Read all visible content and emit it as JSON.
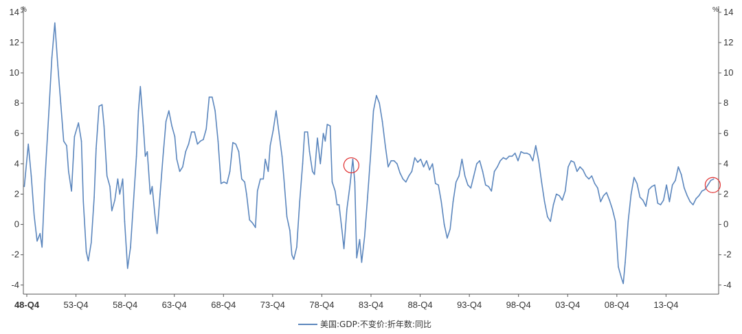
{
  "chart_data": {
    "type": "line",
    "unit_left": "%",
    "unit_right": "%",
    "y_ticks": [
      -4,
      -2,
      0,
      2,
      4,
      6,
      8,
      10,
      12,
      14
    ],
    "ylim": [
      -4.6,
      14.4
    ],
    "x_tick_labels": [
      "48-Q4",
      "53-Q4",
      "58-Q4",
      "63-Q4",
      "68-Q4",
      "73-Q4",
      "78-Q4",
      "83-Q4",
      "88-Q4",
      "93-Q4",
      "98-Q4",
      "03-Q4",
      "08-Q4",
      "13-Q4"
    ],
    "x_tick_values": [
      1948.75,
      1953.75,
      1958.75,
      1963.75,
      1968.75,
      1973.75,
      1978.75,
      1983.75,
      1988.75,
      1993.75,
      1998.75,
      2003.75,
      2008.75,
      2013.75
    ],
    "xlim": [
      1948.4,
      2019.1
    ],
    "grid": false,
    "legend_position": "bottom-center",
    "series": [
      {
        "name": "美国:GDP:不变价:折年数:同比",
        "color": "#5b86bd",
        "points": [
          [
            1948.5,
            2.5
          ],
          [
            1948.9,
            5.3
          ],
          [
            1949.2,
            3.2
          ],
          [
            1949.5,
            0.6
          ],
          [
            1949.8,
            -1.1
          ],
          [
            1950.1,
            -0.6
          ],
          [
            1950.3,
            -1.5
          ],
          [
            1950.6,
            3.0
          ],
          [
            1951.0,
            7.5
          ],
          [
            1951.3,
            11.0
          ],
          [
            1951.6,
            13.3
          ],
          [
            1951.9,
            10.5
          ],
          [
            1952.2,
            8.0
          ],
          [
            1952.5,
            5.5
          ],
          [
            1952.8,
            5.2
          ],
          [
            1953.0,
            3.5
          ],
          [
            1953.3,
            2.2
          ],
          [
            1953.6,
            5.8
          ],
          [
            1954.0,
            6.7
          ],
          [
            1954.3,
            5.5
          ],
          [
            1954.5,
            1.5
          ],
          [
            1954.8,
            -1.8
          ],
          [
            1955.0,
            -2.4
          ],
          [
            1955.3,
            -1.2
          ],
          [
            1955.6,
            1.8
          ],
          [
            1955.8,
            5.0
          ],
          [
            1956.1,
            7.8
          ],
          [
            1956.4,
            7.9
          ],
          [
            1956.6,
            6.5
          ],
          [
            1956.9,
            3.2
          ],
          [
            1957.2,
            2.5
          ],
          [
            1957.4,
            0.9
          ],
          [
            1957.7,
            1.6
          ],
          [
            1958.0,
            3.0
          ],
          [
            1958.2,
            2.0
          ],
          [
            1958.5,
            3.0
          ],
          [
            1958.7,
            0.2
          ],
          [
            1959.0,
            -2.9
          ],
          [
            1959.3,
            -1.5
          ],
          [
            1959.6,
            1.5
          ],
          [
            1959.9,
            4.5
          ],
          [
            1960.1,
            7.5
          ],
          [
            1960.3,
            9.1
          ],
          [
            1960.6,
            6.5
          ],
          [
            1960.8,
            4.5
          ],
          [
            1961.0,
            4.8
          ],
          [
            1961.3,
            2.0
          ],
          [
            1961.5,
            2.5
          ],
          [
            1961.8,
            0.5
          ],
          [
            1962.0,
            -0.6
          ],
          [
            1962.3,
            2.0
          ],
          [
            1962.6,
            4.5
          ],
          [
            1962.9,
            6.8
          ],
          [
            1963.2,
            7.5
          ],
          [
            1963.5,
            6.5
          ],
          [
            1963.8,
            5.8
          ],
          [
            1964.0,
            4.3
          ],
          [
            1964.3,
            3.5
          ],
          [
            1964.6,
            3.8
          ],
          [
            1964.9,
            4.8
          ],
          [
            1965.2,
            5.3
          ],
          [
            1965.5,
            6.1
          ],
          [
            1965.8,
            6.1
          ],
          [
            1966.1,
            5.3
          ],
          [
            1966.4,
            5.5
          ],
          [
            1966.7,
            5.6
          ],
          [
            1967.0,
            6.3
          ],
          [
            1967.3,
            8.4
          ],
          [
            1967.6,
            8.4
          ],
          [
            1967.9,
            7.5
          ],
          [
            1968.2,
            5.5
          ],
          [
            1968.5,
            2.7
          ],
          [
            1968.8,
            2.8
          ],
          [
            1969.1,
            2.7
          ],
          [
            1969.4,
            3.5
          ],
          [
            1969.7,
            5.4
          ],
          [
            1970.0,
            5.3
          ],
          [
            1970.3,
            4.8
          ],
          [
            1970.6,
            3.0
          ],
          [
            1970.9,
            2.8
          ],
          [
            1971.1,
            2.0
          ],
          [
            1971.4,
            0.3
          ],
          [
            1971.7,
            0.1
          ],
          [
            1972.0,
            -0.2
          ],
          [
            1972.2,
            2.2
          ],
          [
            1972.5,
            3.0
          ],
          [
            1972.8,
            3.0
          ],
          [
            1973.0,
            4.3
          ],
          [
            1973.3,
            3.5
          ],
          [
            1973.5,
            5.2
          ],
          [
            1973.8,
            6.2
          ],
          [
            1974.1,
            7.5
          ],
          [
            1974.4,
            6.0
          ],
          [
            1974.7,
            4.5
          ],
          [
            1974.9,
            3.0
          ],
          [
            1975.2,
            0.5
          ],
          [
            1975.5,
            -0.4
          ],
          [
            1975.7,
            -2.0
          ],
          [
            1975.9,
            -2.3
          ],
          [
            1976.2,
            -1.5
          ],
          [
            1976.5,
            1.5
          ],
          [
            1976.8,
            4.0
          ],
          [
            1977.0,
            6.1
          ],
          [
            1977.3,
            6.1
          ],
          [
            1977.5,
            4.8
          ],
          [
            1977.8,
            3.5
          ],
          [
            1978.0,
            3.3
          ],
          [
            1978.3,
            5.7
          ],
          [
            1978.6,
            4.0
          ],
          [
            1978.9,
            6.0
          ],
          [
            1979.1,
            5.5
          ],
          [
            1979.3,
            6.6
          ],
          [
            1979.6,
            6.5
          ],
          [
            1979.8,
            2.8
          ],
          [
            1980.1,
            2.2
          ],
          [
            1980.3,
            1.3
          ],
          [
            1980.5,
            1.3
          ],
          [
            1980.8,
            -0.4
          ],
          [
            1981.0,
            -1.6
          ],
          [
            1981.3,
            1.0
          ],
          [
            1981.6,
            2.5
          ],
          [
            1981.9,
            4.3
          ],
          [
            1982.1,
            2.8
          ],
          [
            1982.3,
            -2.2
          ],
          [
            1982.6,
            -1.0
          ],
          [
            1982.8,
            -2.5
          ],
          [
            1983.1,
            -0.8
          ],
          [
            1983.4,
            1.8
          ],
          [
            1983.7,
            4.5
          ],
          [
            1984.0,
            7.5
          ],
          [
            1984.3,
            8.5
          ],
          [
            1984.6,
            8.0
          ],
          [
            1984.9,
            6.8
          ],
          [
            1985.2,
            5.2
          ],
          [
            1985.5,
            3.8
          ],
          [
            1985.8,
            4.2
          ],
          [
            1986.1,
            4.2
          ],
          [
            1986.4,
            4.0
          ],
          [
            1986.7,
            3.4
          ],
          [
            1987.0,
            3.0
          ],
          [
            1987.3,
            2.8
          ],
          [
            1987.6,
            3.2
          ],
          [
            1987.9,
            3.5
          ],
          [
            1988.2,
            4.4
          ],
          [
            1988.5,
            4.1
          ],
          [
            1988.8,
            4.3
          ],
          [
            1989.1,
            3.8
          ],
          [
            1989.4,
            4.2
          ],
          [
            1989.7,
            3.6
          ],
          [
            1990.0,
            4.0
          ],
          [
            1990.3,
            2.7
          ],
          [
            1990.6,
            2.6
          ],
          [
            1990.9,
            1.5
          ],
          [
            1991.2,
            0.0
          ],
          [
            1991.5,
            -0.9
          ],
          [
            1991.8,
            -0.3
          ],
          [
            1992.1,
            1.5
          ],
          [
            1992.4,
            2.8
          ],
          [
            1992.7,
            3.2
          ],
          [
            1993.0,
            4.3
          ],
          [
            1993.3,
            3.2
          ],
          [
            1993.6,
            2.6
          ],
          [
            1993.9,
            2.4
          ],
          [
            1994.2,
            3.2
          ],
          [
            1994.5,
            4.0
          ],
          [
            1994.8,
            4.2
          ],
          [
            1995.1,
            3.5
          ],
          [
            1995.4,
            2.6
          ],
          [
            1995.7,
            2.5
          ],
          [
            1996.0,
            2.2
          ],
          [
            1996.3,
            3.5
          ],
          [
            1996.6,
            3.8
          ],
          [
            1996.9,
            4.2
          ],
          [
            1997.2,
            4.4
          ],
          [
            1997.5,
            4.3
          ],
          [
            1997.8,
            4.5
          ],
          [
            1998.1,
            4.5
          ],
          [
            1998.4,
            4.7
          ],
          [
            1998.7,
            4.2
          ],
          [
            1999.0,
            4.8
          ],
          [
            1999.3,
            4.7
          ],
          [
            1999.6,
            4.7
          ],
          [
            1999.9,
            4.6
          ],
          [
            2000.2,
            4.2
          ],
          [
            2000.5,
            5.2
          ],
          [
            2000.8,
            4.2
          ],
          [
            2001.1,
            2.8
          ],
          [
            2001.4,
            1.5
          ],
          [
            2001.7,
            0.5
          ],
          [
            2002.0,
            0.2
          ],
          [
            2002.3,
            1.3
          ],
          [
            2002.6,
            2.0
          ],
          [
            2002.9,
            1.9
          ],
          [
            2003.2,
            1.6
          ],
          [
            2003.5,
            2.2
          ],
          [
            2003.8,
            3.8
          ],
          [
            2004.1,
            4.2
          ],
          [
            2004.4,
            4.1
          ],
          [
            2004.7,
            3.5
          ],
          [
            2005.0,
            3.8
          ],
          [
            2005.3,
            3.6
          ],
          [
            2005.6,
            3.2
          ],
          [
            2005.9,
            3.0
          ],
          [
            2006.2,
            3.2
          ],
          [
            2006.5,
            2.7
          ],
          [
            2006.8,
            2.4
          ],
          [
            2007.1,
            1.5
          ],
          [
            2007.4,
            1.9
          ],
          [
            2007.7,
            2.1
          ],
          [
            2008.0,
            1.6
          ],
          [
            2008.3,
            1.0
          ],
          [
            2008.6,
            0.2
          ],
          [
            2008.9,
            -2.8
          ],
          [
            2009.2,
            -3.5
          ],
          [
            2009.4,
            -3.9
          ],
          [
            2009.6,
            -2.5
          ],
          [
            2009.9,
            0.2
          ],
          [
            2010.2,
            2.0
          ],
          [
            2010.5,
            3.1
          ],
          [
            2010.8,
            2.7
          ],
          [
            2011.1,
            1.8
          ],
          [
            2011.4,
            1.6
          ],
          [
            2011.7,
            1.2
          ],
          [
            2012.0,
            2.3
          ],
          [
            2012.3,
            2.5
          ],
          [
            2012.6,
            2.6
          ],
          [
            2012.9,
            1.4
          ],
          [
            2013.2,
            1.3
          ],
          [
            2013.5,
            1.6
          ],
          [
            2013.8,
            2.6
          ],
          [
            2014.1,
            1.5
          ],
          [
            2014.4,
            2.6
          ],
          [
            2014.7,
            2.9
          ],
          [
            2015.0,
            3.8
          ],
          [
            2015.3,
            3.3
          ],
          [
            2015.6,
            2.4
          ],
          [
            2015.9,
            1.9
          ],
          [
            2016.2,
            1.5
          ],
          [
            2016.5,
            1.3
          ],
          [
            2016.8,
            1.7
          ],
          [
            2017.1,
            1.9
          ],
          [
            2017.4,
            2.2
          ],
          [
            2017.7,
            2.3
          ],
          [
            2018.0,
            2.6
          ],
          [
            2018.3,
            2.9
          ],
          [
            2018.6,
            3.0
          ]
        ]
      }
    ],
    "annotations": [
      {
        "shape": "circle",
        "x": 1981.75,
        "y": 3.9,
        "color": "#e03030"
      },
      {
        "shape": "circle",
        "x": 2018.5,
        "y": 2.6,
        "color": "#e03030"
      }
    ]
  }
}
